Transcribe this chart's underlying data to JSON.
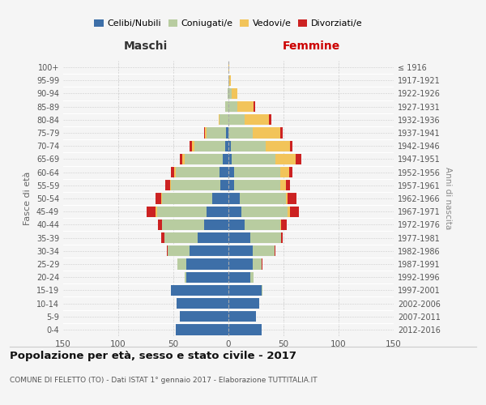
{
  "age_groups": [
    "0-4",
    "5-9",
    "10-14",
    "15-19",
    "20-24",
    "25-29",
    "30-34",
    "35-39",
    "40-44",
    "45-49",
    "50-54",
    "55-59",
    "60-64",
    "65-69",
    "70-74",
    "75-79",
    "80-84",
    "85-89",
    "90-94",
    "95-99",
    "100+"
  ],
  "birth_years": [
    "2012-2016",
    "2007-2011",
    "2002-2006",
    "1997-2001",
    "1992-1996",
    "1987-1991",
    "1982-1986",
    "1977-1981",
    "1972-1976",
    "1967-1971",
    "1962-1966",
    "1957-1961",
    "1952-1956",
    "1947-1951",
    "1942-1946",
    "1937-1941",
    "1932-1936",
    "1927-1931",
    "1922-1926",
    "1917-1921",
    "≤ 1916"
  ],
  "maschi": {
    "celibi": [
      48,
      44,
      47,
      52,
      38,
      38,
      35,
      28,
      22,
      20,
      15,
      7,
      8,
      5,
      3,
      2,
      0,
      0,
      0,
      0,
      0
    ],
    "coniugati": [
      0,
      0,
      0,
      0,
      2,
      8,
      20,
      30,
      38,
      45,
      45,
      45,
      40,
      35,
      28,
      18,
      8,
      3,
      1,
      0,
      0
    ],
    "vedovi": [
      0,
      0,
      0,
      0,
      0,
      0,
      0,
      0,
      0,
      1,
      1,
      1,
      1,
      2,
      2,
      1,
      1,
      0,
      0,
      0,
      0
    ],
    "divorziati": [
      0,
      0,
      0,
      0,
      0,
      0,
      1,
      3,
      4,
      8,
      5,
      4,
      3,
      2,
      2,
      1,
      0,
      0,
      0,
      0,
      0
    ]
  },
  "femmine": {
    "nubili": [
      30,
      25,
      28,
      30,
      20,
      22,
      22,
      20,
      15,
      12,
      10,
      5,
      5,
      3,
      2,
      0,
      0,
      0,
      0,
      0,
      0
    ],
    "coniugate": [
      0,
      0,
      0,
      1,
      3,
      8,
      20,
      28,
      32,
      42,
      42,
      42,
      42,
      40,
      32,
      22,
      15,
      8,
      3,
      1,
      0
    ],
    "vedove": [
      0,
      0,
      0,
      0,
      0,
      0,
      0,
      0,
      1,
      2,
      2,
      5,
      8,
      18,
      22,
      25,
      22,
      15,
      5,
      1,
      1
    ],
    "divorziate": [
      0,
      0,
      0,
      0,
      0,
      1,
      1,
      1,
      5,
      8,
      8,
      4,
      3,
      5,
      2,
      2,
      2,
      1,
      0,
      0,
      0
    ]
  },
  "colors": {
    "celibi_nubili": "#3d6fa8",
    "coniugati": "#b8cca0",
    "vedovi": "#f2c45a",
    "divorziati": "#cc2222"
  },
  "title": "Popolazione per età, sesso e stato civile - 2017",
  "subtitle": "COMUNE DI FELETTO (TO) - Dati ISTAT 1° gennaio 2017 - Elaborazione TUTTITALIA.IT",
  "xlabel_maschi": "Maschi",
  "xlabel_femmine": "Femmine",
  "ylabel_left": "Fasce di età",
  "ylabel_right": "Anni di nascita",
  "xlim": 150,
  "background_color": "#f5f5f5",
  "plot_bg": "#f5f5f5",
  "grid_color": "#cccccc"
}
